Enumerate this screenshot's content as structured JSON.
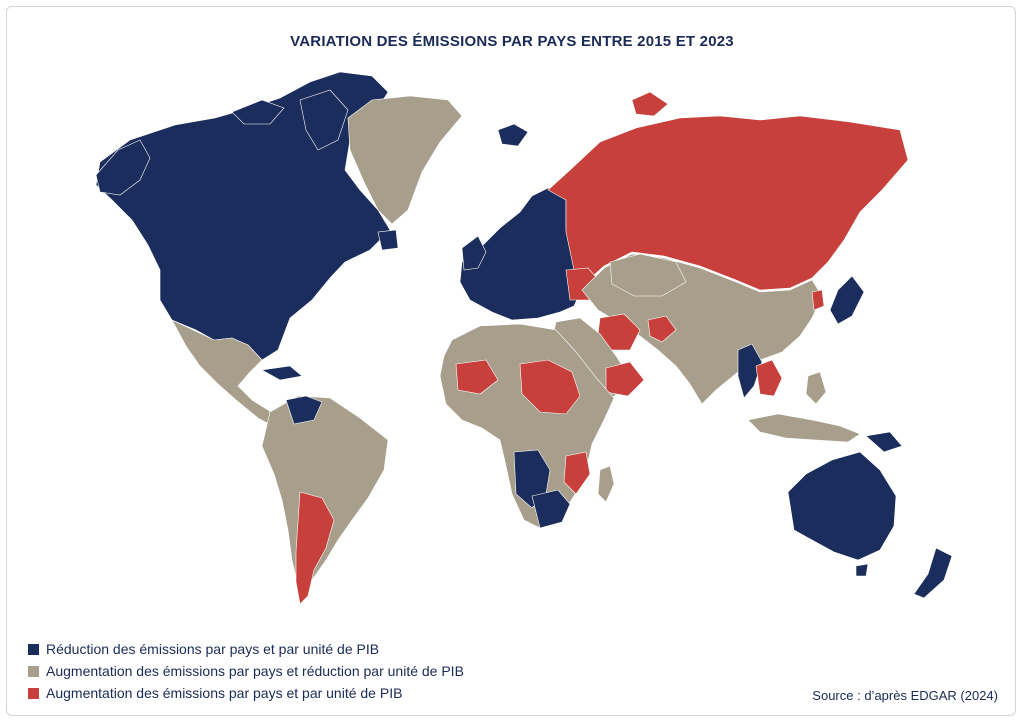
{
  "title": "VARIATION DES ÉMISSIONS PAR PAYS ENTRE 2015 ET 2023",
  "colors": {
    "reduction_both": "#1b2d5c",
    "increase_country_reduction_gdp": "#a79e8c",
    "increase_both": "#c8403b"
  },
  "legend": [
    {
      "label": "Réduction des émissions par pays et par unité de PIB",
      "color": "#1b2d5c"
    },
    {
      "label": "Augmentation des émissions par pays et réduction par unité de PIB",
      "color": "#a79e8c"
    },
    {
      "label": "Augmentation des émissions par pays et par unité de PIB",
      "color": "#c8403b"
    }
  ],
  "source": "Source : d’après EDGAR (2024)"
}
